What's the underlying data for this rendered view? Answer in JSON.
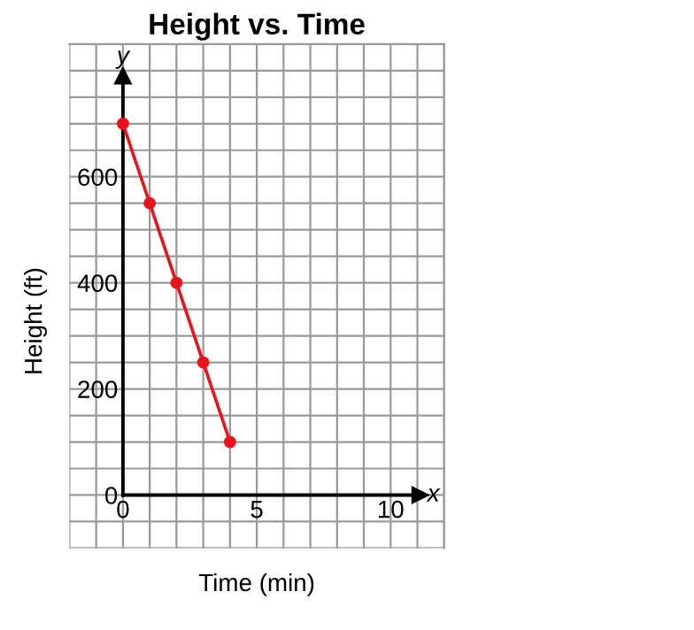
{
  "chart_data": {
    "type": "line",
    "title": "Height vs. Time",
    "xlabel": "Time (min)",
    "ylabel": "Height (ft)",
    "x": [
      0,
      1,
      2,
      3,
      4
    ],
    "series": [
      {
        "color": "#e8141c",
        "values": [
          700,
          550,
          400,
          250,
          100
        ]
      }
    ],
    "xlim": [
      -2,
      12
    ],
    "ylim": [
      -100,
      850
    ],
    "xticks": [
      {
        "value": -2,
        "label": null
      },
      {
        "value": -1,
        "label": null
      },
      0,
      {
        "value": 1,
        "label": null
      },
      {
        "value": 2,
        "label": null
      },
      {
        "value": 3,
        "label": null
      },
      {
        "value": 4,
        "label": null
      },
      5,
      {
        "value": 6,
        "label": null
      },
      {
        "value": 7,
        "label": null
      },
      {
        "value": 8,
        "label": null
      },
      {
        "value": 9,
        "label": null
      },
      10,
      {
        "value": 11,
        "label": null
      },
      {
        "value": 12,
        "label": null
      }
    ],
    "yticks": [
      {
        "value": -100,
        "label": null
      },
      {
        "value": -50,
        "label": null
      },
      0,
      {
        "value": 50,
        "label": null
      },
      {
        "value": 100,
        "label": null
      },
      {
        "value": 150,
        "label": null
      },
      200,
      {
        "value": 250,
        "label": null
      },
      {
        "value": 300,
        "label": null
      },
      {
        "value": 350,
        "label": null
      },
      400,
      {
        "value": 450,
        "label": null
      },
      {
        "value": 500,
        "label": null
      },
      {
        "value": 550,
        "label": null
      },
      600,
      {
        "value": 650,
        "label": null
      },
      {
        "value": 700,
        "label": null
      },
      {
        "value": 750,
        "label": null
      },
      {
        "value": 800,
        "label": null
      },
      {
        "value": 850,
        "label": null
      }
    ],
    "annotations": [
      "x",
      "y"
    ],
    "grid": true,
    "marker": "circle",
    "line_style": "solid"
  }
}
